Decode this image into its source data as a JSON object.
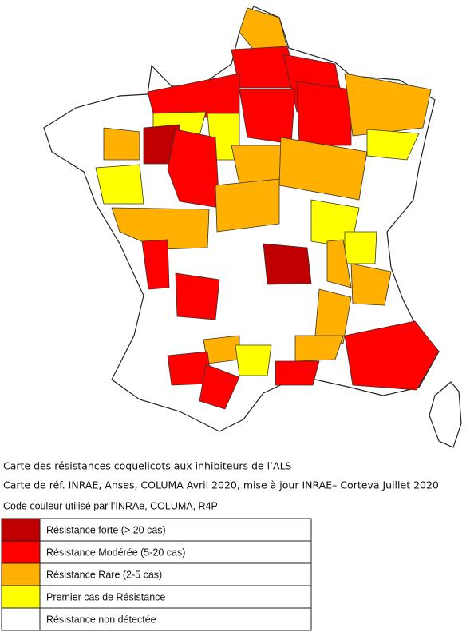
{
  "caption": {
    "lines": [
      "Carte des résistances coquelicots aux inhibiteurs de l’ALS",
      "Carte de réf. INRAE, Anses, COLUMA Avril 2020, mise à jour INRAE– Corteva Juillet 2020"
    ]
  },
  "legend": {
    "title": "Code couleur utilisé par l’INRAe, COLUMA, R4P",
    "entries": [
      {
        "label": "Résistance forte (> 20 cas)",
        "color": "#c00000"
      },
      {
        "label": "Résistance Modérée (5-20 cas)",
        "color": "#ff0000"
      },
      {
        "label": "Résistance Rare (2-5 cas)",
        "color": "#ffb000"
      },
      {
        "label": "Premier cas de Résistance",
        "color": "#ffff00"
      },
      {
        "label": "Résistance non détectée",
        "color": "#ffffff"
      }
    ]
  }
}
